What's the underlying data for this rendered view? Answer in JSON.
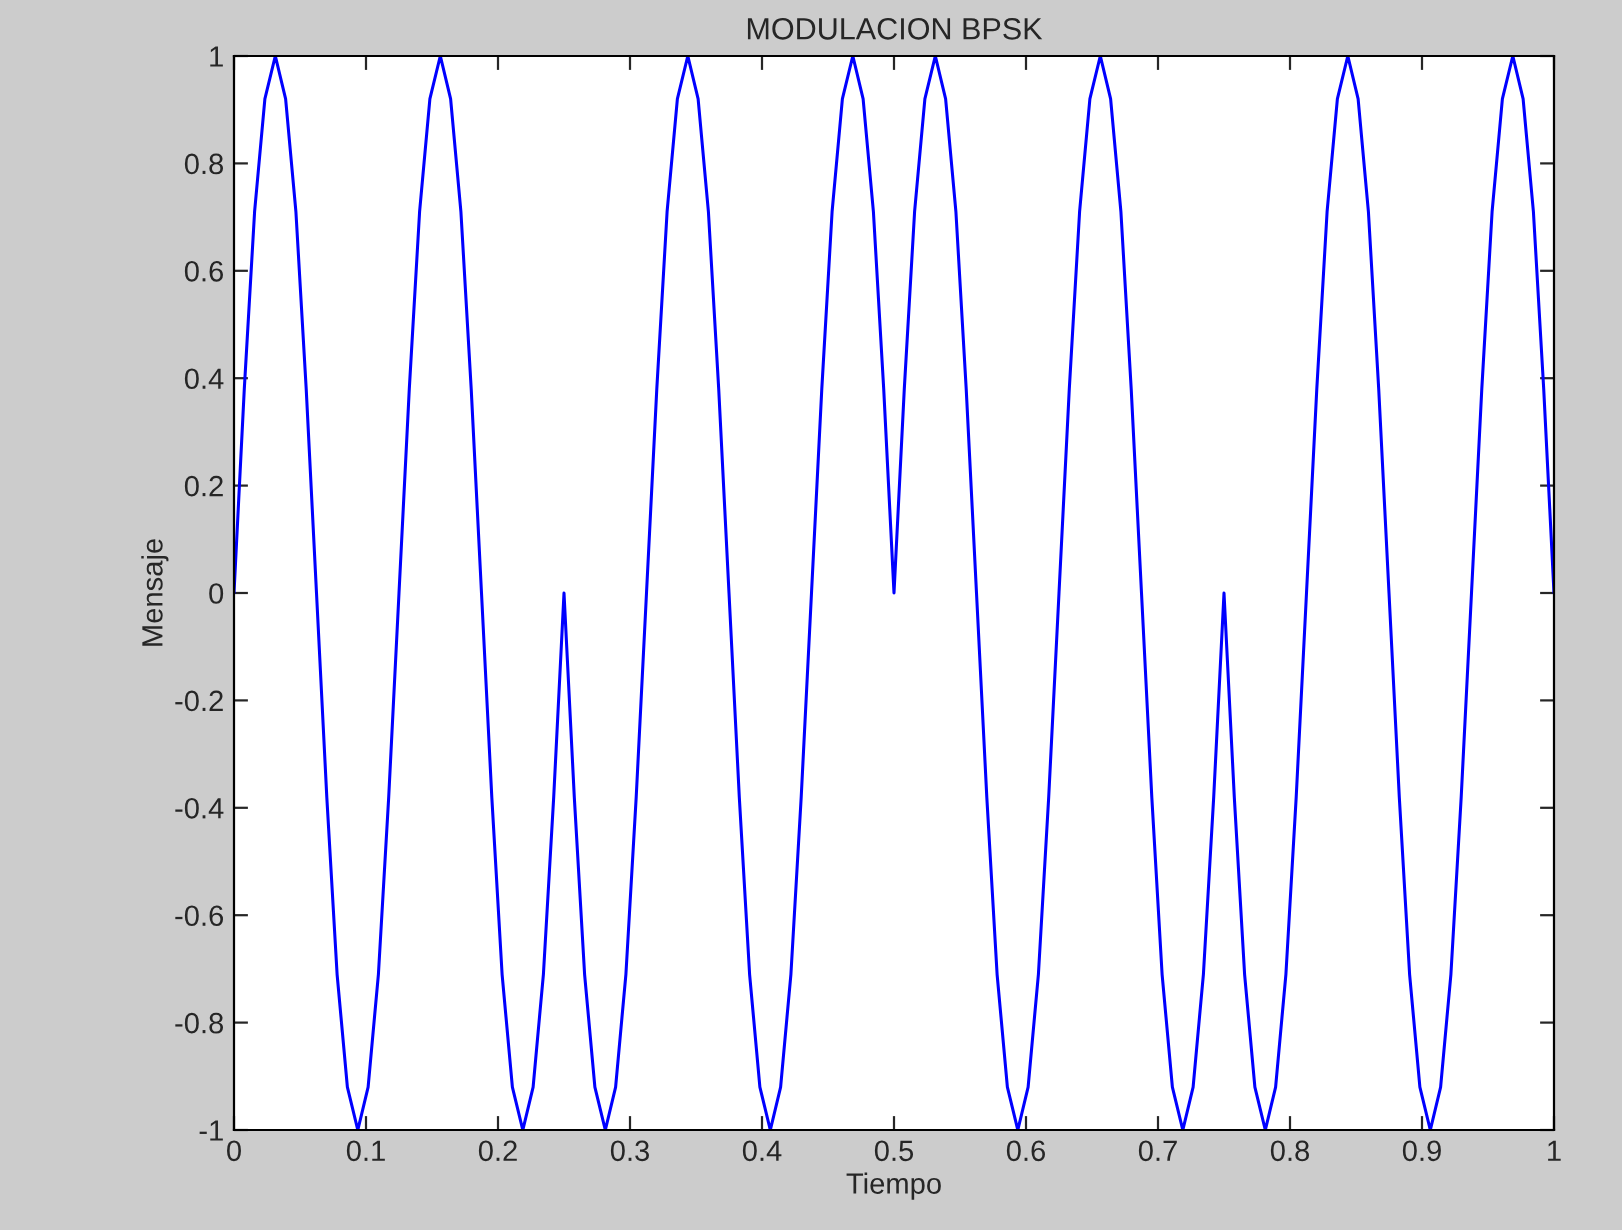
{
  "chart_data": {
    "type": "line",
    "title": "MODULACION BPSK",
    "xlabel": "Tiempo",
    "ylabel": "Mensaje",
    "xlim": [
      0,
      1
    ],
    "ylim": [
      -1,
      1
    ],
    "xticks": [
      0,
      0.1,
      0.2,
      0.3,
      0.4,
      0.5,
      0.6,
      0.7,
      0.8,
      0.9,
      1
    ],
    "yticks": [
      -1,
      -0.8,
      -0.6,
      -0.4,
      -0.2,
      0,
      0.2,
      0.4,
      0.6,
      0.8,
      1
    ],
    "grid": false,
    "legend": false,
    "series": [
      {
        "color": "#0000ff",
        "x": [
          0,
          0.0078,
          0.0156,
          0.0234,
          0.0313,
          0.0391,
          0.0469,
          0.0547,
          0.0625,
          0.0703,
          0.0781,
          0.0859,
          0.0938,
          0.1016,
          0.1094,
          0.1172,
          0.125,
          0.1328,
          0.1406,
          0.1484,
          0.1563,
          0.1641,
          0.1719,
          0.1797,
          0.1875,
          0.1953,
          0.2031,
          0.2109,
          0.2188,
          0.2266,
          0.2344,
          0.2422,
          0.25,
          0.2578,
          0.2656,
          0.2734,
          0.2813,
          0.2891,
          0.2969,
          0.3047,
          0.3125,
          0.3203,
          0.3281,
          0.3359,
          0.3438,
          0.3516,
          0.3594,
          0.3672,
          0.375,
          0.3828,
          0.3906,
          0.3984,
          0.4063,
          0.4141,
          0.4219,
          0.4297,
          0.4375,
          0.4453,
          0.4531,
          0.4609,
          0.4688,
          0.4766,
          0.4844,
          0.4922,
          0.5,
          0.5078,
          0.5156,
          0.5234,
          0.5313,
          0.5391,
          0.5469,
          0.5547,
          0.5625,
          0.5703,
          0.5781,
          0.5859,
          0.5938,
          0.6016,
          0.6094,
          0.6172,
          0.625,
          0.6328,
          0.6406,
          0.6484,
          0.6563,
          0.6641,
          0.6719,
          0.6797,
          0.6875,
          0.6953,
          0.7031,
          0.7109,
          0.7188,
          0.7266,
          0.7344,
          0.7422,
          0.75,
          0.7578,
          0.7656,
          0.7734,
          0.7813,
          0.7891,
          0.7969,
          0.8047,
          0.8125,
          0.8203,
          0.8281,
          0.8359,
          0.8438,
          0.8516,
          0.8594,
          0.8672,
          0.875,
          0.8828,
          0.8906,
          0.8984,
          0.9063,
          0.9141,
          0.9219,
          0.9297,
          0.9375,
          0.9453,
          0.9531,
          0.9609,
          0.9688,
          0.9766,
          0.9844,
          0.9922,
          1
        ],
        "values": [
          0,
          0.38,
          0.71,
          0.92,
          1,
          0.92,
          0.71,
          0.38,
          0,
          -0.38,
          -0.71,
          -0.92,
          -1,
          -0.92,
          -0.71,
          -0.38,
          0,
          0.38,
          0.71,
          0.92,
          1,
          0.92,
          0.71,
          0.38,
          0,
          -0.38,
          -0.71,
          -0.92,
          -1,
          -0.92,
          -0.71,
          -0.38,
          0,
          -0.38,
          -0.71,
          -0.92,
          -1,
          -0.92,
          -0.71,
          -0.38,
          0,
          0.38,
          0.71,
          0.92,
          1,
          0.92,
          0.71,
          0.38,
          0,
          -0.38,
          -0.71,
          -0.92,
          -1,
          -0.92,
          -0.71,
          -0.38,
          0,
          0.38,
          0.71,
          0.92,
          1,
          0.92,
          0.71,
          0.38,
          0,
          0.38,
          0.71,
          0.92,
          1,
          0.92,
          0.71,
          0.38,
          0,
          -0.38,
          -0.71,
          -0.92,
          -1,
          -0.92,
          -0.71,
          -0.38,
          0,
          0.38,
          0.71,
          0.92,
          1,
          0.92,
          0.71,
          0.38,
          0,
          -0.38,
          -0.71,
          -0.92,
          -1,
          -0.92,
          -0.71,
          -0.38,
          0,
          -0.38,
          -0.71,
          -0.92,
          -1,
          -0.92,
          -0.71,
          -0.38,
          0,
          0.38,
          0.71,
          0.92,
          1,
          0.92,
          0.71,
          0.38,
          0,
          -0.38,
          -0.71,
          -0.92,
          -1,
          -0.92,
          -0.71,
          -0.38,
          0,
          0.38,
          0.71,
          0.92,
          1,
          0.92,
          0.71,
          0.38,
          0
        ]
      }
    ]
  }
}
